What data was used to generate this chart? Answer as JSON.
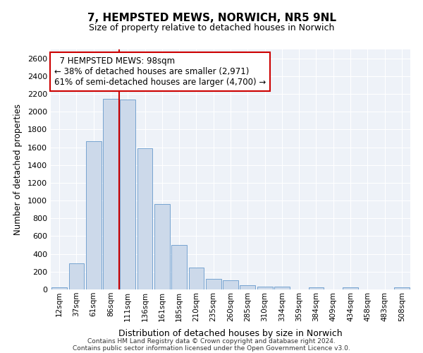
{
  "title_line1": "7, HEMPSTED MEWS, NORWICH, NR5 9NL",
  "title_line2": "Size of property relative to detached houses in Norwich",
  "xlabel": "Distribution of detached houses by size in Norwich",
  "ylabel": "Number of detached properties",
  "annotation_line1": "7 HEMPSTED MEWS: 98sqm",
  "annotation_line2": "← 38% of detached houses are smaller (2,971)",
  "annotation_line3": "61% of semi-detached houses are larger (4,700) →",
  "bar_color": "#ccd9ea",
  "bar_edge_color": "#6699cc",
  "vline_color": "#cc0000",
  "annotation_box_edge": "#cc0000",
  "categories": [
    "12sqm",
    "37sqm",
    "61sqm",
    "86sqm",
    "111sqm",
    "136sqm",
    "161sqm",
    "185sqm",
    "210sqm",
    "235sqm",
    "260sqm",
    "285sqm",
    "310sqm",
    "334sqm",
    "359sqm",
    "384sqm",
    "409sqm",
    "434sqm",
    "458sqm",
    "483sqm",
    "508sqm"
  ],
  "values": [
    25,
    295,
    1670,
    2145,
    2140,
    1590,
    960,
    500,
    245,
    120,
    100,
    50,
    35,
    30,
    0,
    25,
    0,
    25,
    0,
    0,
    20
  ],
  "ylim": [
    0,
    2700
  ],
  "yticks": [
    0,
    200,
    400,
    600,
    800,
    1000,
    1200,
    1400,
    1600,
    1800,
    2000,
    2200,
    2400,
    2600
  ],
  "footer_line1": "Contains HM Land Registry data © Crown copyright and database right 2024.",
  "footer_line2": "Contains public sector information licensed under the Open Government Licence v3.0.",
  "bg_color": "#eef2f8"
}
